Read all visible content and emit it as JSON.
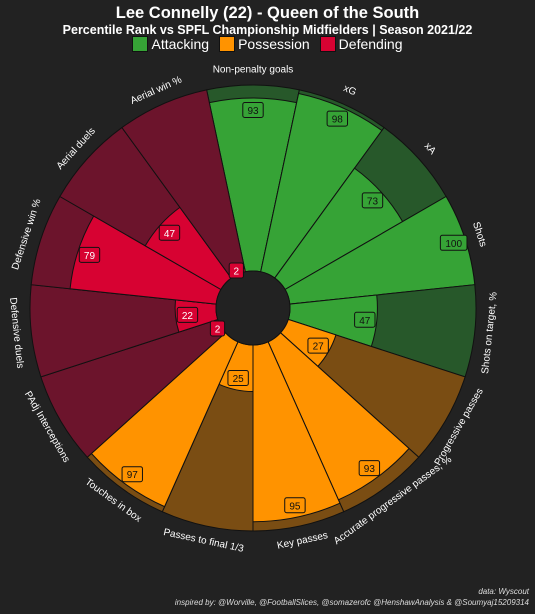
{
  "title": "Lee Connelly (22) - Queen of the South",
  "subtitle": "Percentile Rank vs SPFL Championship Midfielders | Season 2021/22",
  "legend": [
    {
      "label": "Attacking",
      "color": "#36a336"
    },
    {
      "label": "Possession",
      "color": "#ff9300"
    },
    {
      "label": "Defending",
      "color": "#d70232"
    }
  ],
  "credits": {
    "data": "data: Wyscout",
    "inspired": "inspired by: @Worville, @FootballSlices, @somazerofc @HenshawAnalysis & @Soumyaj15209314"
  },
  "chart_data": {
    "type": "polar-bar",
    "range": [
      0,
      100
    ],
    "categories": [
      {
        "name": "Non-penalty goals",
        "value": 93,
        "group": "Attacking"
      },
      {
        "name": "xG",
        "value": 98,
        "group": "Attacking"
      },
      {
        "name": "xA",
        "value": 73,
        "group": "Attacking"
      },
      {
        "name": "Shots",
        "value": 100,
        "group": "Attacking"
      },
      {
        "name": "Shots on target, %",
        "value": 47,
        "group": "Attacking"
      },
      {
        "name": "Progressive passes",
        "value": 27,
        "group": "Possession"
      },
      {
        "name": "Accurate progressive passes, %",
        "value": 93,
        "group": "Possession"
      },
      {
        "name": "Key passes",
        "value": 95,
        "group": "Possession"
      },
      {
        "name": "Passes to final 1/3",
        "value": 25,
        "group": "Possession"
      },
      {
        "name": "Touches in box",
        "value": 97,
        "group": "Possession"
      },
      {
        "name": "PAdj Interceptions",
        "value": 2,
        "group": "Defending"
      },
      {
        "name": "Defensive duels",
        "value": 22,
        "group": "Defending"
      },
      {
        "name": "Defensive win %",
        "value": 79,
        "group": "Defending"
      },
      {
        "name": "Aerial duels",
        "value": 47,
        "group": "Defending"
      },
      {
        "name": "Aerial win %",
        "value": 2,
        "group": "Defending"
      }
    ],
    "group_colors": {
      "Attacking": {
        "fill": "#36a336",
        "background": "#27582a"
      },
      "Possession": {
        "fill": "#ff9300",
        "background": "#7a4d13"
      },
      "Defending": {
        "fill": "#d70232",
        "background": "#6c142c"
      }
    }
  }
}
